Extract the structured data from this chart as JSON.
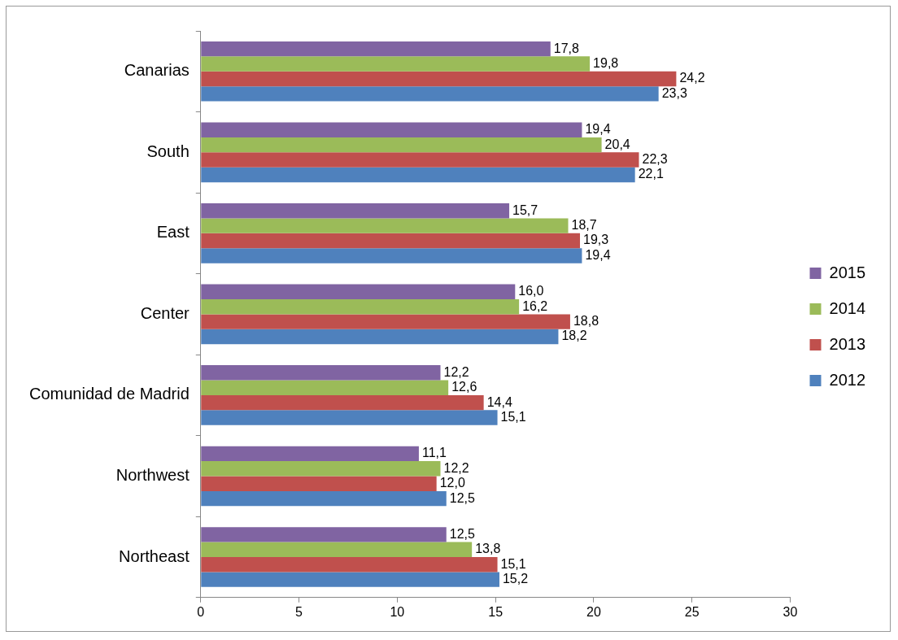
{
  "chart_data": {
    "type": "bar",
    "orientation": "horizontal",
    "categories": [
      "Canarias",
      "South",
      "East",
      "Center",
      "Comunidad de Madrid",
      "Northwest",
      "Northeast"
    ],
    "series": [
      {
        "name": "2015",
        "color": "#8064a2",
        "values": [
          17.8,
          19.4,
          15.7,
          16.0,
          12.2,
          11.1,
          12.5
        ],
        "value_labels": [
          "17,8",
          "19,4",
          "15,7",
          "16,0",
          "12,2",
          "11,1",
          "12,5"
        ]
      },
      {
        "name": "2014",
        "color": "#9bbb59",
        "values": [
          19.8,
          20.4,
          18.7,
          16.2,
          12.6,
          12.2,
          13.8
        ],
        "value_labels": [
          "19,8",
          "20,4",
          "18,7",
          "16,2",
          "12,6",
          "12,2",
          "13,8"
        ]
      },
      {
        "name": "2013",
        "color": "#c0504d",
        "values": [
          24.2,
          22.3,
          19.3,
          18.8,
          14.4,
          12.0,
          15.1
        ],
        "value_labels": [
          "24,2",
          "22,3",
          "19,3",
          "18,8",
          "14,4",
          "12,0",
          "15,1"
        ]
      },
      {
        "name": "2012",
        "color": "#4f81bd",
        "values": [
          23.3,
          22.1,
          19.4,
          18.2,
          15.1,
          12.5,
          15.2
        ],
        "value_labels": [
          "23,3",
          "22,1",
          "19,4",
          "18,2",
          "15,1",
          "12,5",
          "15,2"
        ]
      }
    ],
    "xlim": [
      0,
      30
    ],
    "xticks": [
      0,
      5,
      10,
      15,
      20,
      25,
      30
    ],
    "grid": false,
    "legend": "right"
  }
}
